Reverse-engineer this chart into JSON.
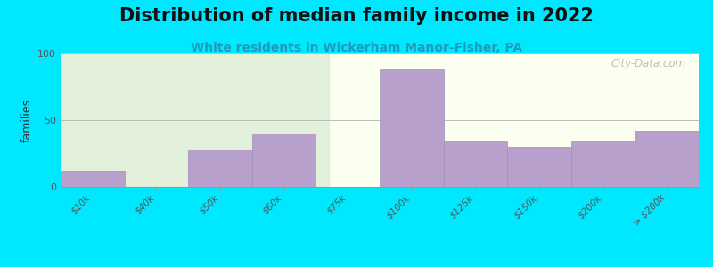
{
  "title": "Distribution of median family income in 2022",
  "subtitle": "White residents in Wickerham Manor-Fisher, PA",
  "ylabel": "families",
  "background_outer": "#00e8ff",
  "background_inner_left": "#d8ead0",
  "background_inner_right": "#fafff0",
  "bar_color": "#b8a0cc",
  "bar_edge_color": "#a090b8",
  "categories": [
    "$10k",
    "$40k",
    "$50k",
    "$60k",
    "$75k",
    "$100k",
    "$125k",
    "$150k",
    "$200k",
    "> $200k"
  ],
  "values": [
    12,
    0,
    28,
    40,
    0,
    88,
    35,
    30,
    35,
    42
  ],
  "ylim": [
    0,
    100
  ],
  "yticks": [
    0,
    50,
    100
  ],
  "grid_color": "#bbbbbb",
  "title_fontsize": 15,
  "subtitle_fontsize": 10,
  "ylabel_fontsize": 9,
  "tick_fontsize": 7.5,
  "watermark": "City-Data.com"
}
